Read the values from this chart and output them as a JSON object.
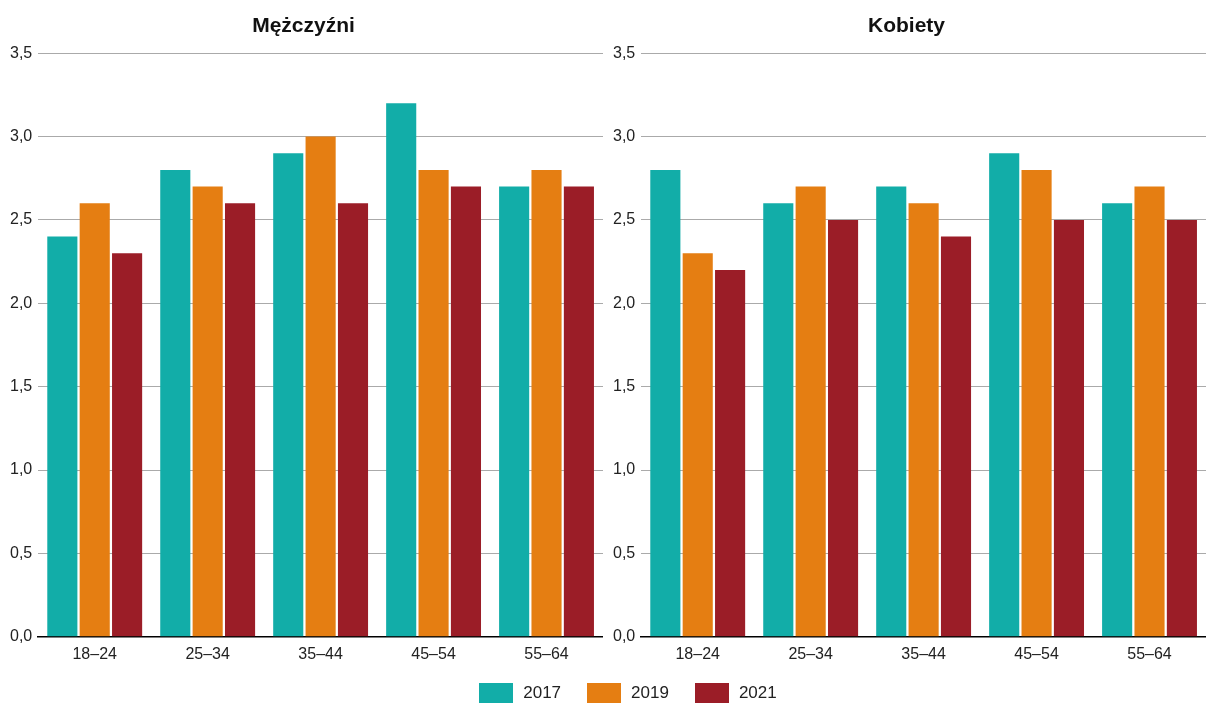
{
  "chart_data": [
    {
      "type": "bar",
      "title": "Mężczyźni",
      "categories": [
        "18–24",
        "25–34",
        "35–44",
        "45–54",
        "55–64"
      ],
      "series": [
        {
          "name": "2017",
          "color": "#12ada8",
          "values": [
            2.4,
            2.8,
            2.9,
            3.2,
            2.7
          ]
        },
        {
          "name": "2019",
          "color": "#e57e12",
          "values": [
            2.6,
            2.7,
            3.0,
            2.8,
            2.8
          ]
        },
        {
          "name": "2021",
          "color": "#9b1d27",
          "values": [
            2.3,
            2.6,
            2.6,
            2.7,
            2.7
          ]
        }
      ],
      "ylim": [
        0,
        3.5
      ],
      "yticks": [
        {
          "value": 0,
          "label": "0,0"
        },
        {
          "value": 0.5,
          "label": "0,5"
        },
        {
          "value": 1,
          "label": "1,0"
        },
        {
          "value": 1.5,
          "label": "1,5"
        },
        {
          "value": 2,
          "label": "2,0"
        },
        {
          "value": 2.5,
          "label": "2,5"
        },
        {
          "value": 3,
          "label": "3,0"
        },
        {
          "value": 3.5,
          "label": "3,5"
        }
      ],
      "grid": "y",
      "legend": "bottom"
    },
    {
      "type": "bar",
      "title": "Kobiety",
      "categories": [
        "18–24",
        "25–34",
        "35–44",
        "45–54",
        "55–64"
      ],
      "series": [
        {
          "name": "2017",
          "color": "#12ada8",
          "values": [
            2.8,
            2.6,
            2.7,
            2.9,
            2.6
          ]
        },
        {
          "name": "2019",
          "color": "#e57e12",
          "values": [
            2.3,
            2.7,
            2.6,
            2.8,
            2.7
          ]
        },
        {
          "name": "2021",
          "color": "#9b1d27",
          "values": [
            2.2,
            2.5,
            2.4,
            2.5,
            2.5
          ]
        }
      ],
      "ylim": [
        0,
        3.5
      ],
      "yticks": [
        {
          "value": 0,
          "label": "0,0"
        },
        {
          "value": 0.5,
          "label": "0,5"
        },
        {
          "value": 1,
          "label": "1,0"
        },
        {
          "value": 1.5,
          "label": "1,5"
        },
        {
          "value": 2,
          "label": "2,0"
        },
        {
          "value": 2.5,
          "label": "2,5"
        },
        {
          "value": 3,
          "label": "3,0"
        },
        {
          "value": 3.5,
          "label": "3,5"
        }
      ],
      "grid": "y",
      "legend": "bottom"
    }
  ]
}
